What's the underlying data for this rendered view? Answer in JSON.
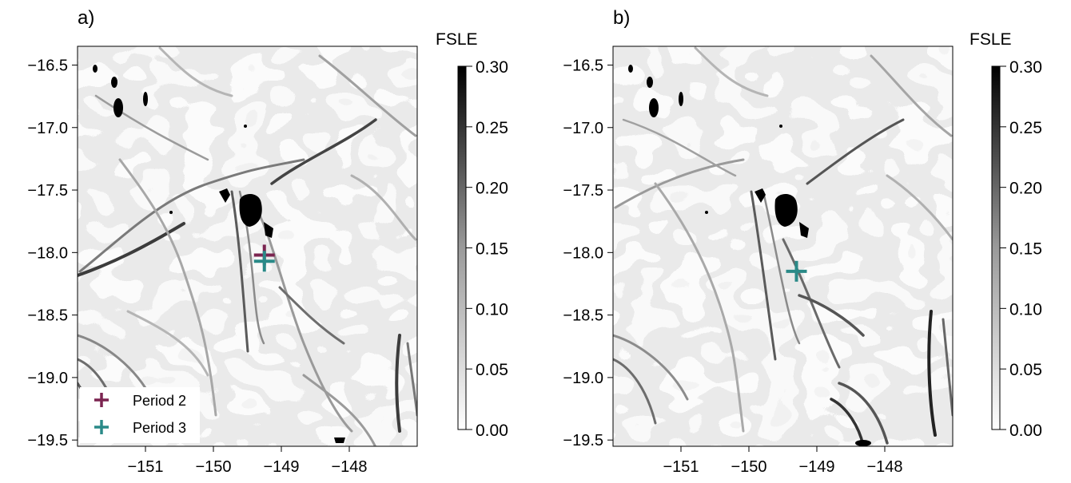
{
  "chart_data": [
    {
      "type": "heatmap",
      "panel_label": "a)",
      "colorbar_title": "FSLE",
      "colorbar_ticks": [
        "0.00",
        "0.05",
        "0.10",
        "0.15",
        "0.20",
        "0.25",
        "0.30"
      ],
      "colorbar_range": [
        0,
        0.3
      ],
      "colormap": [
        "#ffffff",
        "#000000"
      ],
      "xlim": [
        -152,
        -147
      ],
      "ylim": [
        -19.55,
        -16.35
      ],
      "x_ticks": [
        -151,
        -150,
        -149,
        -148
      ],
      "x_tick_labels": [
        "−151",
        "−150",
        "−149",
        "−148"
      ],
      "y_ticks": [
        -16.5,
        -17.0,
        -17.5,
        -18.0,
        -18.5,
        -19.0,
        -19.5
      ],
      "y_tick_labels": [
        "−16.5",
        "−17.0",
        "−17.5",
        "−18.0",
        "−18.5",
        "−19.0",
        "−19.5"
      ],
      "markers": [
        {
          "name": "Period 2",
          "x": -149.25,
          "y": -18.02,
          "color": "#7b2450"
        },
        {
          "name": "Period 3",
          "x": -149.25,
          "y": -18.07,
          "color": "#2a8a88"
        }
      ],
      "legend": {
        "position": "bottom-left",
        "entries": [
          "Period 2",
          "Period 3"
        ]
      }
    },
    {
      "type": "heatmap",
      "panel_label": "b)",
      "colorbar_title": "FSLE",
      "colorbar_ticks": [
        "0.00",
        "0.05",
        "0.10",
        "0.15",
        "0.20",
        "0.25",
        "0.30"
      ],
      "colorbar_range": [
        0,
        0.3
      ],
      "colormap": [
        "#ffffff",
        "#000000"
      ],
      "xlim": [
        -152,
        -147
      ],
      "ylim": [
        -19.55,
        -16.35
      ],
      "x_ticks": [
        -151,
        -150,
        -149,
        -148
      ],
      "x_tick_labels": [
        "−151",
        "−150",
        "−149",
        "−148"
      ],
      "y_ticks": [
        -16.5,
        -17.0,
        -17.5,
        -18.0,
        -18.5,
        -19.0,
        -19.5
      ],
      "y_tick_labels": [
        "−16.5",
        "−17.0",
        "−17.5",
        "−18.0",
        "−18.5",
        "−19.0",
        "−19.5"
      ],
      "markers": [
        {
          "name": "Period 3",
          "x": -149.3,
          "y": -18.15,
          "color": "#2a8a88"
        }
      ]
    }
  ]
}
